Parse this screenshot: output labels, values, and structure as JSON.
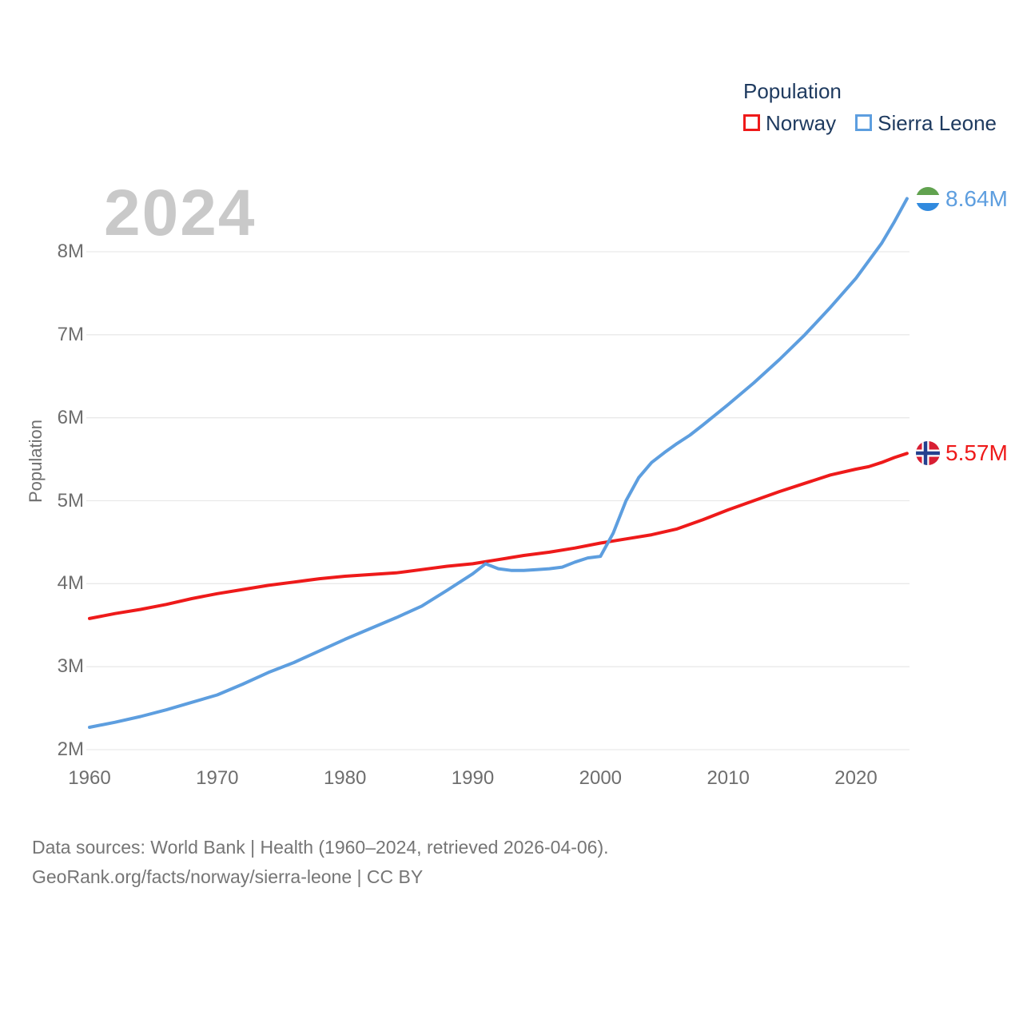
{
  "watermark": "2024",
  "legend": {
    "title": "Population",
    "items": [
      {
        "label": "Norway"
      },
      {
        "label": "Sierra Leone"
      }
    ]
  },
  "y_axis_title": "Population",
  "end_labels": {
    "sierra_leone": "8.64M",
    "norway": "5.57M"
  },
  "footer": {
    "line1": "Data sources: World Bank | Health (1960–2024, retrieved 2026-04-06).",
    "line2": "GeoRank.org/facts/norway/sierra-leone | CC BY"
  },
  "chart_data": {
    "type": "line",
    "title": "Population",
    "xlabel": "",
    "ylabel": "Population",
    "x_range": [
      1960,
      2024
    ],
    "y_range_millions": [
      1.8,
      8.8
    ],
    "grid": "horizontal",
    "legend_position": "top-right",
    "x_ticks": [
      1960,
      1970,
      1980,
      1990,
      2000,
      2010,
      2020
    ],
    "y_ticks": [
      {
        "value": 2,
        "label": "2M"
      },
      {
        "value": 3,
        "label": "3M"
      },
      {
        "value": 4,
        "label": "4M"
      },
      {
        "value": 5,
        "label": "5M"
      },
      {
        "value": 6,
        "label": "6M"
      },
      {
        "value": 7,
        "label": "7M"
      },
      {
        "value": 8,
        "label": "8M"
      }
    ],
    "series": [
      {
        "name": "Norway",
        "color": "#ee1a1a",
        "end_label": "5.57M",
        "points": [
          [
            1960,
            3.58
          ],
          [
            1962,
            3.64
          ],
          [
            1964,
            3.69
          ],
          [
            1966,
            3.75
          ],
          [
            1968,
            3.82
          ],
          [
            1970,
            3.88
          ],
          [
            1972,
            3.93
          ],
          [
            1974,
            3.98
          ],
          [
            1976,
            4.02
          ],
          [
            1978,
            4.06
          ],
          [
            1980,
            4.09
          ],
          [
            1982,
            4.11
          ],
          [
            1984,
            4.13
          ],
          [
            1986,
            4.17
          ],
          [
            1988,
            4.21
          ],
          [
            1990,
            4.24
          ],
          [
            1992,
            4.29
          ],
          [
            1994,
            4.34
          ],
          [
            1996,
            4.38
          ],
          [
            1998,
            4.43
          ],
          [
            2000,
            4.49
          ],
          [
            2002,
            4.54
          ],
          [
            2004,
            4.59
          ],
          [
            2006,
            4.66
          ],
          [
            2008,
            4.77
          ],
          [
            2010,
            4.89
          ],
          [
            2012,
            5.0
          ],
          [
            2014,
            5.11
          ],
          [
            2016,
            5.21
          ],
          [
            2018,
            5.31
          ],
          [
            2020,
            5.38
          ],
          [
            2021,
            5.41
          ],
          [
            2022,
            5.46
          ],
          [
            2023,
            5.52
          ],
          [
            2024,
            5.57
          ]
        ]
      },
      {
        "name": "Sierra Leone",
        "color": "#5d9edf",
        "end_label": "8.64M",
        "points": [
          [
            1960,
            2.27
          ],
          [
            1962,
            2.33
          ],
          [
            1964,
            2.4
          ],
          [
            1966,
            2.48
          ],
          [
            1968,
            2.57
          ],
          [
            1970,
            2.66
          ],
          [
            1972,
            2.79
          ],
          [
            1974,
            2.93
          ],
          [
            1976,
            3.05
          ],
          [
            1978,
            3.19
          ],
          [
            1980,
            3.33
          ],
          [
            1982,
            3.46
          ],
          [
            1984,
            3.59
          ],
          [
            1986,
            3.73
          ],
          [
            1988,
            3.92
          ],
          [
            1990,
            4.12
          ],
          [
            1991,
            4.24
          ],
          [
            1992,
            4.18
          ],
          [
            1993,
            4.16
          ],
          [
            1994,
            4.16
          ],
          [
            1995,
            4.17
          ],
          [
            1996,
            4.18
          ],
          [
            1997,
            4.2
          ],
          [
            1998,
            4.26
          ],
          [
            1999,
            4.31
          ],
          [
            2000,
            4.33
          ],
          [
            2001,
            4.61
          ],
          [
            2002,
            5.0
          ],
          [
            2003,
            5.28
          ],
          [
            2004,
            5.46
          ],
          [
            2005,
            5.58
          ],
          [
            2006,
            5.69
          ],
          [
            2007,
            5.79
          ],
          [
            2008,
            5.91
          ],
          [
            2010,
            6.16
          ],
          [
            2012,
            6.42
          ],
          [
            2014,
            6.7
          ],
          [
            2016,
            7.0
          ],
          [
            2018,
            7.33
          ],
          [
            2020,
            7.68
          ],
          [
            2022,
            8.1
          ],
          [
            2023,
            8.36
          ],
          [
            2024,
            8.64
          ]
        ]
      }
    ]
  }
}
